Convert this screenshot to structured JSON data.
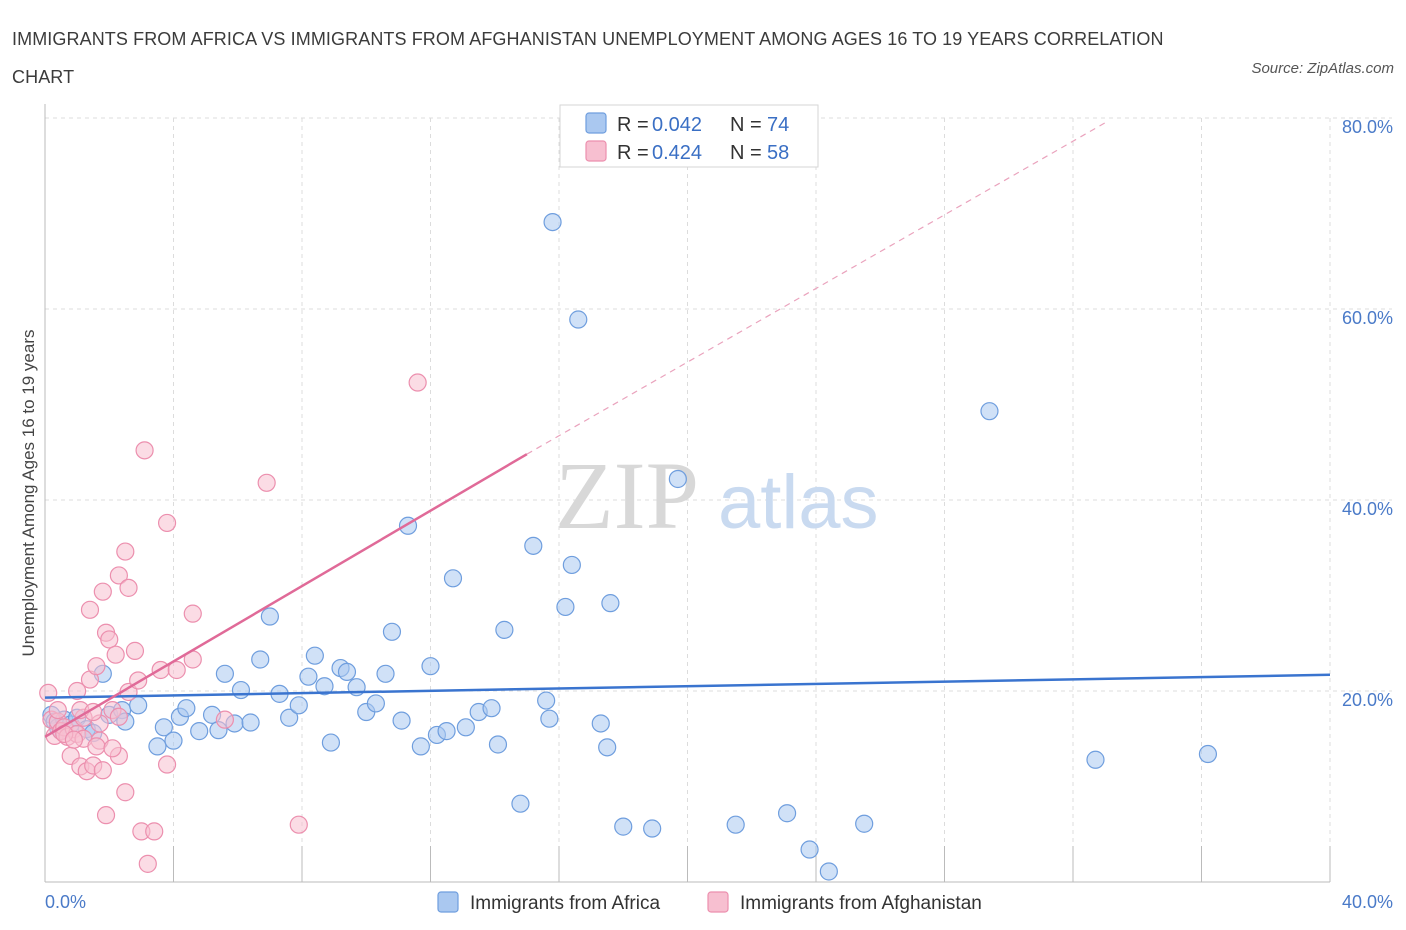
{
  "title": "IMMIGRANTS FROM AFRICA VS IMMIGRANTS FROM AFGHANISTAN UNEMPLOYMENT AMONG AGES 16 TO 19 YEARS CORRELATION CHART",
  "source": "Source: ZipAtlas.com",
  "watermark": {
    "zip": "ZIP",
    "atlas": "atlas"
  },
  "legend": {
    "rows": [
      {
        "r_label": "R =",
        "r_value": "0.042",
        "n_label": "N =",
        "n_value": "74"
      },
      {
        "r_label": "R =",
        "r_value": "0.424",
        "n_label": "N =",
        "n_value": "58"
      }
    ]
  },
  "bottom_legend": [
    "Immigrants from Africa",
    "Immigrants from Afghanistan"
  ],
  "colors": {
    "africa_fill": "#aac8f0",
    "africa_stroke": "#6f9ede",
    "africa_line": "#3a74cf",
    "afgh_fill": "#f7bfd0",
    "afgh_stroke": "#ec8fae",
    "afgh_line": "#e06a98",
    "grid": "#dcdcdc",
    "tick_text": "#4a7ac8"
  },
  "chart_data": {
    "type": "scatter",
    "title": "IMMIGRANTS FROM AFRICA VS IMMIGRANTS FROM AFGHANISTAN UNEMPLOYMENT AMONG AGES 16 TO 19 YEARS CORRELATION CHART",
    "xlabel": "",
    "ylabel": "Unemployment Among Ages 16 to 19 years",
    "xlim": [
      0,
      40
    ],
    "ylim": [
      0,
      80
    ],
    "x_tick_labels": [
      "0.0%",
      "40.0%"
    ],
    "y_ticks": [
      20,
      40,
      60,
      80
    ],
    "y_tick_labels": [
      "20.0%",
      "40.0%",
      "60.0%",
      "80.0%"
    ],
    "grid": true,
    "series": [
      {
        "name": "Immigrants from Africa",
        "trend": {
          "x": [
            0,
            40
          ],
          "y": [
            19.3,
            21.7
          ],
          "style": "solid"
        },
        "points": [
          [
            0.2,
            17.5
          ],
          [
            0.3,
            16.8
          ],
          [
            0.4,
            16.2
          ],
          [
            0.5,
            15.8
          ],
          [
            0.6,
            17.0
          ],
          [
            0.8,
            16.5
          ],
          [
            1.0,
            17.2
          ],
          [
            1.3,
            16.0
          ],
          [
            1.5,
            15.6
          ],
          [
            1.8,
            21.8
          ],
          [
            2.0,
            17.5
          ],
          [
            2.4,
            18.0
          ],
          [
            2.5,
            16.8
          ],
          [
            2.9,
            18.5
          ],
          [
            3.5,
            14.2
          ],
          [
            3.7,
            16.2
          ],
          [
            4.0,
            14.8
          ],
          [
            4.2,
            17.3
          ],
          [
            4.4,
            18.2
          ],
          [
            4.8,
            15.8
          ],
          [
            5.2,
            17.5
          ],
          [
            5.4,
            15.9
          ],
          [
            5.6,
            21.8
          ],
          [
            5.9,
            16.6
          ],
          [
            6.1,
            20.1
          ],
          [
            6.4,
            16.7
          ],
          [
            6.7,
            23.3
          ],
          [
            7.0,
            27.8
          ],
          [
            7.3,
            19.7
          ],
          [
            7.6,
            17.2
          ],
          [
            7.9,
            18.5
          ],
          [
            8.2,
            21.5
          ],
          [
            8.4,
            23.7
          ],
          [
            8.7,
            20.5
          ],
          [
            8.9,
            14.6
          ],
          [
            9.2,
            22.4
          ],
          [
            9.4,
            22.0
          ],
          [
            9.7,
            20.4
          ],
          [
            10.0,
            17.8
          ],
          [
            10.3,
            18.7
          ],
          [
            10.6,
            21.8
          ],
          [
            10.8,
            26.2
          ],
          [
            11.1,
            16.9
          ],
          [
            11.3,
            37.3
          ],
          [
            11.7,
            14.2
          ],
          [
            12.0,
            22.6
          ],
          [
            12.2,
            15.4
          ],
          [
            12.5,
            15.8
          ],
          [
            12.7,
            31.8
          ],
          [
            13.1,
            16.2
          ],
          [
            13.5,
            17.8
          ],
          [
            13.9,
            18.2
          ],
          [
            14.1,
            14.4
          ],
          [
            14.3,
            26.4
          ],
          [
            14.8,
            8.2
          ],
          [
            15.2,
            35.2
          ],
          [
            15.6,
            19.0
          ],
          [
            15.7,
            17.1
          ],
          [
            15.8,
            69.1
          ],
          [
            16.2,
            28.8
          ],
          [
            16.4,
            33.2
          ],
          [
            16.6,
            58.9
          ],
          [
            17.3,
            16.6
          ],
          [
            17.5,
            14.1
          ],
          [
            17.6,
            29.2
          ],
          [
            18.0,
            5.8
          ],
          [
            18.9,
            5.6
          ],
          [
            19.7,
            42.2
          ],
          [
            21.5,
            6.0
          ],
          [
            23.1,
            7.2
          ],
          [
            23.8,
            3.4
          ],
          [
            24.4,
            1.1
          ],
          [
            25.5,
            6.1
          ],
          [
            29.4,
            49.3
          ],
          [
            32.7,
            12.8
          ],
          [
            36.2,
            13.4
          ]
        ]
      },
      {
        "name": "Immigrants from Afghanistan",
        "trend": {
          "x": [
            0,
            15
          ],
          "y": [
            15.2,
            44.8
          ],
          "style": "solid",
          "extended_x": [
            15,
            33
          ],
          "extended_y": [
            44.8,
            79.5
          ],
          "extended_style": "dashed"
        },
        "points": [
          [
            0.1,
            19.8
          ],
          [
            0.2,
            17.0
          ],
          [
            0.3,
            15.3
          ],
          [
            0.4,
            16.8
          ],
          [
            0.5,
            15.8
          ],
          [
            0.6,
            16.2
          ],
          [
            0.7,
            15.2
          ],
          [
            0.8,
            13.2
          ],
          [
            0.9,
            16.0
          ],
          [
            1.0,
            15.5
          ],
          [
            1.0,
            20.0
          ],
          [
            1.1,
            12.1
          ],
          [
            1.2,
            17.2
          ],
          [
            1.2,
            15.0
          ],
          [
            1.3,
            11.6
          ],
          [
            1.4,
            21.2
          ],
          [
            1.4,
            28.5
          ],
          [
            1.5,
            12.2
          ],
          [
            1.6,
            22.6
          ],
          [
            1.7,
            14.8
          ],
          [
            1.7,
            16.6
          ],
          [
            1.8,
            11.7
          ],
          [
            1.8,
            30.4
          ],
          [
            1.9,
            26.1
          ],
          [
            1.9,
            7.0
          ],
          [
            2.0,
            25.4
          ],
          [
            2.1,
            18.0
          ],
          [
            2.2,
            23.8
          ],
          [
            2.3,
            17.3
          ],
          [
            2.3,
            13.2
          ],
          [
            2.3,
            32.1
          ],
          [
            2.5,
            9.4
          ],
          [
            2.5,
            34.6
          ],
          [
            2.6,
            30.8
          ],
          [
            2.6,
            19.9
          ],
          [
            2.8,
            24.2
          ],
          [
            2.9,
            21.1
          ],
          [
            3.0,
            5.3
          ],
          [
            3.1,
            45.2
          ],
          [
            3.2,
            1.9
          ],
          [
            3.4,
            5.3
          ],
          [
            3.6,
            22.2
          ],
          [
            3.8,
            12.3
          ],
          [
            3.8,
            37.6
          ],
          [
            4.1,
            22.2
          ],
          [
            4.6,
            23.3
          ],
          [
            4.6,
            28.1
          ],
          [
            5.6,
            17.0
          ],
          [
            6.9,
            41.8
          ],
          [
            7.9,
            6.0
          ],
          [
            11.6,
            52.3
          ],
          [
            0.6,
            15.5
          ],
          [
            0.9,
            14.9
          ],
          [
            1.1,
            18.0
          ],
          [
            1.5,
            17.8
          ],
          [
            1.6,
            14.2
          ],
          [
            2.1,
            14.0
          ],
          [
            0.4,
            18.0
          ]
        ]
      }
    ]
  }
}
